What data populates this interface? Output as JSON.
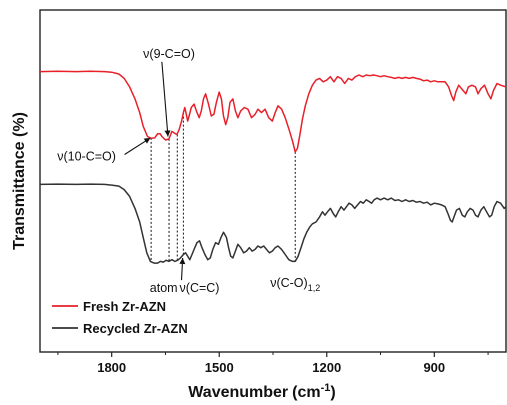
{
  "chart_data": {
    "type": "line",
    "xlabel": "Wavenumber",
    "xlabel_unit_base": "(cm",
    "xlabel_unit_sup": "-1",
    "xlabel_unit_end": ")",
    "ylabel": "Transmittance (%)",
    "xlim": [
      2000,
      700
    ],
    "x_reversed": true,
    "xticks": [
      1800,
      1500,
      1200,
      900
    ],
    "xtick_labels": [
      "1800",
      "1500",
      "1200",
      "900"
    ],
    "ylim": [
      0,
      100
    ],
    "grid": false,
    "legend_position": "bottom-left",
    "series": [
      {
        "name": "Fresh Zr-AZN",
        "color": "#e8202a",
        "points": [
          [
            2000,
            82.0
          ],
          [
            1950,
            82.1
          ],
          [
            1900,
            82.0
          ],
          [
            1860,
            82.1
          ],
          [
            1820,
            82.0
          ],
          [
            1800,
            81.8
          ],
          [
            1780,
            81.3
          ],
          [
            1765,
            80.0
          ],
          [
            1750,
            77.5
          ],
          [
            1735,
            74.0
          ],
          [
            1722,
            70.0
          ],
          [
            1712,
            66.0
          ],
          [
            1700,
            63.0
          ],
          [
            1690,
            62.5
          ],
          [
            1680,
            62.6
          ],
          [
            1672,
            63.8
          ],
          [
            1665,
            63.8
          ],
          [
            1660,
            63.0
          ],
          [
            1650,
            62.0
          ],
          [
            1640,
            62.3
          ],
          [
            1632,
            64.5
          ],
          [
            1625,
            64.0
          ],
          [
            1618,
            63.6
          ],
          [
            1612,
            65.0
          ],
          [
            1605,
            67.5
          ],
          [
            1600,
            70.0
          ],
          [
            1596,
            71.5
          ],
          [
            1592,
            69.5
          ],
          [
            1588,
            67.5
          ],
          [
            1584,
            69.0
          ],
          [
            1578,
            71.5
          ],
          [
            1570,
            72.5
          ],
          [
            1562,
            70.0
          ],
          [
            1556,
            68.5
          ],
          [
            1550,
            70.5
          ],
          [
            1544,
            74.0
          ],
          [
            1538,
            75.5
          ],
          [
            1530,
            72.5
          ],
          [
            1522,
            69.0
          ],
          [
            1515,
            69.5
          ],
          [
            1508,
            73.0
          ],
          [
            1500,
            76.0
          ],
          [
            1494,
            74.0
          ],
          [
            1488,
            69.0
          ],
          [
            1482,
            66.5
          ],
          [
            1476,
            68.5
          ],
          [
            1470,
            73.0
          ],
          [
            1462,
            74.0
          ],
          [
            1455,
            70.5
          ],
          [
            1448,
            68.5
          ],
          [
            1440,
            70.5
          ],
          [
            1430,
            71.5
          ],
          [
            1420,
            71.0
          ],
          [
            1410,
            68.5
          ],
          [
            1400,
            69.5
          ],
          [
            1392,
            71.0
          ],
          [
            1382,
            70.0
          ],
          [
            1372,
            71.0
          ],
          [
            1362,
            68.5
          ],
          [
            1352,
            67.5
          ],
          [
            1344,
            70.0
          ],
          [
            1336,
            72.0
          ],
          [
            1326,
            71.0
          ],
          [
            1316,
            68.5
          ],
          [
            1305,
            65.0
          ],
          [
            1295,
            61.5
          ],
          [
            1288,
            58.5
          ],
          [
            1282,
            59.5
          ],
          [
            1275,
            63.5
          ],
          [
            1268,
            68.0
          ],
          [
            1260,
            72.0
          ],
          [
            1250,
            75.5
          ],
          [
            1240,
            78.0
          ],
          [
            1230,
            79.5
          ],
          [
            1220,
            80.0
          ],
          [
            1210,
            79.0
          ],
          [
            1200,
            79.5
          ],
          [
            1190,
            80.5
          ],
          [
            1180,
            79.0
          ],
          [
            1170,
            80.5
          ],
          [
            1160,
            80.0
          ],
          [
            1150,
            78.5
          ],
          [
            1140,
            80.0
          ],
          [
            1130,
            79.5
          ],
          [
            1120,
            80.5
          ],
          [
            1110,
            81.0
          ],
          [
            1100,
            80.5
          ],
          [
            1090,
            81.0
          ],
          [
            1080,
            80.8
          ],
          [
            1070,
            81.0
          ],
          [
            1060,
            80.8
          ],
          [
            1050,
            80.5
          ],
          [
            1040,
            80.8
          ],
          [
            1030,
            80.5
          ],
          [
            1020,
            80.3
          ],
          [
            1010,
            80.0
          ],
          [
            1000,
            80.3
          ],
          [
            990,
            80.0
          ],
          [
            980,
            80.3
          ],
          [
            970,
            80.0
          ],
          [
            960,
            80.3
          ],
          [
            950,
            80.0
          ],
          [
            940,
            79.8
          ],
          [
            930,
            79.3
          ],
          [
            920,
            79.5
          ],
          [
            910,
            79.0
          ],
          [
            900,
            79.3
          ],
          [
            890,
            79.0
          ],
          [
            880,
            79.0
          ],
          [
            870,
            79.0
          ],
          [
            860,
            77.5
          ],
          [
            852,
            75.0
          ],
          [
            846,
            73.5
          ],
          [
            840,
            76.0
          ],
          [
            832,
            78.0
          ],
          [
            820,
            76.5
          ],
          [
            812,
            75.5
          ],
          [
            805,
            77.5
          ],
          [
            795,
            78.0
          ],
          [
            785,
            77.5
          ],
          [
            778,
            75.5
          ],
          [
            770,
            77.0
          ],
          [
            760,
            78.0
          ],
          [
            750,
            75.5
          ],
          [
            742,
            74.0
          ],
          [
            735,
            76.5
          ],
          [
            725,
            78.5
          ],
          [
            715,
            78.0
          ],
          [
            700,
            77.5
          ]
        ]
      },
      {
        "name": "Recycled Zr-AZN",
        "color": "#333333",
        "points": [
          [
            2000,
            49.0
          ],
          [
            1950,
            49.1
          ],
          [
            1900,
            49.0
          ],
          [
            1860,
            49.1
          ],
          [
            1820,
            49.0
          ],
          [
            1800,
            48.8
          ],
          [
            1780,
            48.5
          ],
          [
            1765,
            47.5
          ],
          [
            1750,
            45.5
          ],
          [
            1735,
            42.0
          ],
          [
            1722,
            38.0
          ],
          [
            1712,
            33.5
          ],
          [
            1702,
            29.0
          ],
          [
            1692,
            26.5
          ],
          [
            1682,
            26.0
          ],
          [
            1672,
            26.0
          ],
          [
            1664,
            26.5
          ],
          [
            1656,
            26.3
          ],
          [
            1648,
            26.8
          ],
          [
            1640,
            26.5
          ],
          [
            1632,
            27.0
          ],
          [
            1624,
            26.5
          ],
          [
            1616,
            26.8
          ],
          [
            1608,
            27.5
          ],
          [
            1600,
            28.5
          ],
          [
            1594,
            29.0
          ],
          [
            1588,
            28.0
          ],
          [
            1582,
            27.0
          ],
          [
            1576,
            28.5
          ],
          [
            1570,
            30.0
          ],
          [
            1562,
            32.0
          ],
          [
            1555,
            32.5
          ],
          [
            1548,
            30.5
          ],
          [
            1540,
            28.5
          ],
          [
            1532,
            27.0
          ],
          [
            1525,
            27.5
          ],
          [
            1518,
            30.0
          ],
          [
            1510,
            32.0
          ],
          [
            1502,
            31.5
          ],
          [
            1495,
            33.5
          ],
          [
            1488,
            35.0
          ],
          [
            1480,
            33.5
          ],
          [
            1474,
            30.5
          ],
          [
            1468,
            28.0
          ],
          [
            1462,
            27.5
          ],
          [
            1455,
            29.5
          ],
          [
            1448,
            31.5
          ],
          [
            1440,
            30.5
          ],
          [
            1432,
            29.0
          ],
          [
            1424,
            29.5
          ],
          [
            1416,
            30.5
          ],
          [
            1408,
            29.5
          ],
          [
            1400,
            30.0
          ],
          [
            1392,
            31.0
          ],
          [
            1384,
            30.5
          ],
          [
            1376,
            31.0
          ],
          [
            1368,
            30.0
          ],
          [
            1360,
            29.0
          ],
          [
            1352,
            29.5
          ],
          [
            1344,
            30.5
          ],
          [
            1336,
            31.0
          ],
          [
            1326,
            30.0
          ],
          [
            1316,
            28.5
          ],
          [
            1306,
            27.0
          ],
          [
            1296,
            26.5
          ],
          [
            1288,
            26.5
          ],
          [
            1280,
            28.0
          ],
          [
            1272,
            30.5
          ],
          [
            1264,
            33.0
          ],
          [
            1256,
            35.0
          ],
          [
            1248,
            36.5
          ],
          [
            1240,
            37.5
          ],
          [
            1230,
            38.0
          ],
          [
            1220,
            39.5
          ],
          [
            1212,
            41.0
          ],
          [
            1205,
            40.0
          ],
          [
            1198,
            41.0
          ],
          [
            1190,
            42.0
          ],
          [
            1182,
            40.5
          ],
          [
            1175,
            39.5
          ],
          [
            1168,
            41.0
          ],
          [
            1160,
            42.5
          ],
          [
            1152,
            41.5
          ],
          [
            1145,
            42.5
          ],
          [
            1138,
            43.5
          ],
          [
            1130,
            43.0
          ],
          [
            1122,
            42.0
          ],
          [
            1114,
            43.0
          ],
          [
            1106,
            44.0
          ],
          [
            1098,
            43.5
          ],
          [
            1090,
            44.5
          ],
          [
            1082,
            44.0
          ],
          [
            1075,
            43.5
          ],
          [
            1068,
            44.5
          ],
          [
            1060,
            45.0
          ],
          [
            1050,
            44.5
          ],
          [
            1040,
            45.0
          ],
          [
            1030,
            44.5
          ],
          [
            1020,
            45.0
          ],
          [
            1010,
            44.3
          ],
          [
            1000,
            44.5
          ],
          [
            990,
            44.0
          ],
          [
            980,
            44.5
          ],
          [
            970,
            44.0
          ],
          [
            960,
            44.3
          ],
          [
            950,
            43.8
          ],
          [
            940,
            44.0
          ],
          [
            930,
            43.5
          ],
          [
            920,
            43.8
          ],
          [
            910,
            43.0
          ],
          [
            900,
            43.5
          ],
          [
            890,
            43.3
          ],
          [
            880,
            43.0
          ],
          [
            870,
            42.5
          ],
          [
            862,
            40.5
          ],
          [
            855,
            38.5
          ],
          [
            850,
            38.0
          ],
          [
            845,
            39.5
          ],
          [
            838,
            41.5
          ],
          [
            830,
            42.0
          ],
          [
            822,
            40.0
          ],
          [
            815,
            39.5
          ],
          [
            808,
            41.0
          ],
          [
            800,
            42.0
          ],
          [
            792,
            41.5
          ],
          [
            785,
            40.0
          ],
          [
            778,
            39.5
          ],
          [
            770,
            41.5
          ],
          [
            762,
            42.5
          ],
          [
            754,
            41.0
          ],
          [
            746,
            39.5
          ],
          [
            740,
            40.0
          ],
          [
            733,
            42.5
          ],
          [
            725,
            44.0
          ],
          [
            715,
            43.5
          ],
          [
            705,
            42.0
          ],
          [
            700,
            42.5
          ]
        ]
      }
    ],
    "reference_lines": [
      {
        "x": 1690,
        "y_top": 62.6,
        "y_bottom": 26.4
      },
      {
        "x": 1640,
        "y_top": 62.3,
        "y_bottom": 26.5
      },
      {
        "x": 1617,
        "y_top": 63.6,
        "y_bottom": 26.8
      },
      {
        "x": 1600,
        "y_top": 70.0,
        "y_bottom": 28.5
      },
      {
        "x": 1288,
        "y_top": 58.5,
        "y_bottom": 26.5
      }
    ],
    "annotations": [
      {
        "id": "ann-9co",
        "text": "ν(9-C=O)",
        "sub": "",
        "x": 1640,
        "y": 86.0,
        "arrow_to": [
          1643,
          63.0
        ]
      },
      {
        "id": "ann-10co",
        "text": "ν(10-C=O)",
        "sub": "",
        "x": 1870,
        "y": 56.0,
        "arrow_to": [
          1692,
          62.6
        ]
      },
      {
        "id": "ann-atom",
        "text": "atom",
        "sub": "",
        "x": 1655,
        "y": 17.5
      },
      {
        "id": "ann-cc",
        "text": "ν(C=C)",
        "sub": "",
        "x": 1555,
        "y": 17.5,
        "arrow_to": [
          1602,
          27.5
        ]
      },
      {
        "id": "ann-co",
        "text": "ν(C-O)",
        "sub": "1,2",
        "x": 1288,
        "y": 19.0
      }
    ]
  }
}
